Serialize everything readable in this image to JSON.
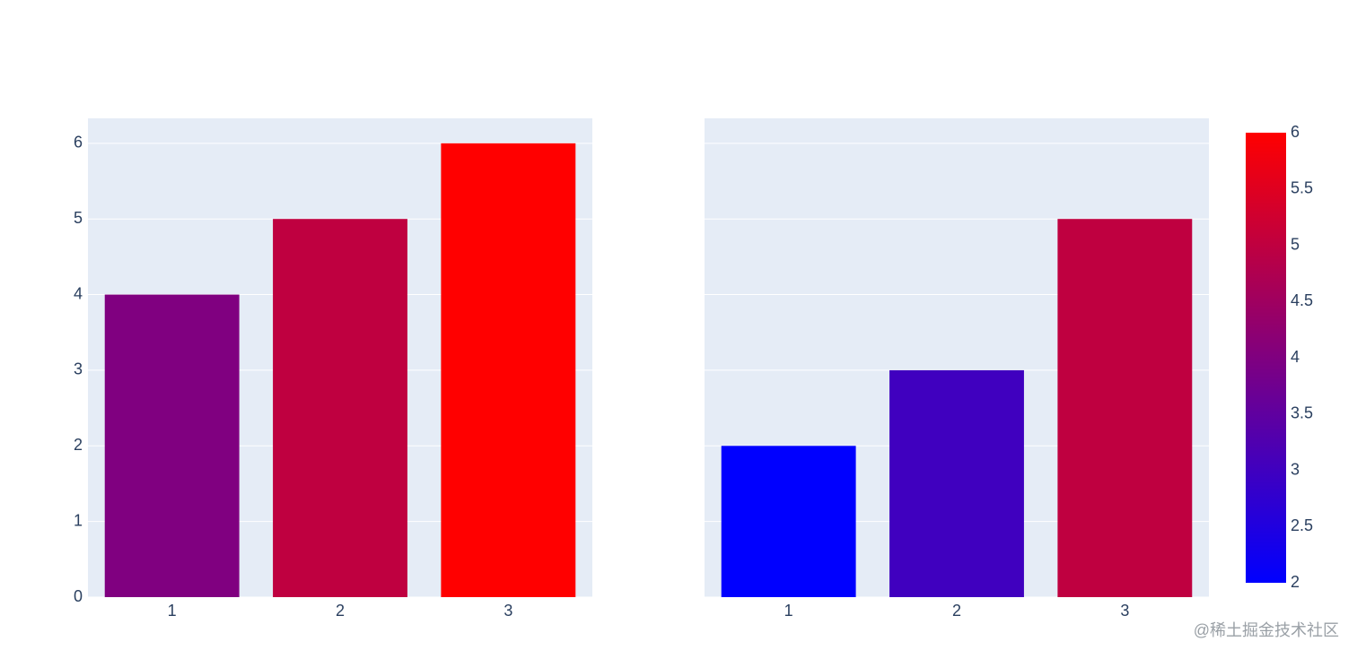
{
  "chart_data": [
    {
      "type": "bar",
      "categories": [
        "1",
        "2",
        "3"
      ],
      "series": [
        {
          "values": [
            4,
            5,
            6
          ],
          "colors": [
            "#800080",
            "#bf0040",
            "#ff0000"
          ]
        }
      ],
      "ylim": [
        0,
        6.33
      ],
      "yticks": [
        0,
        1,
        2,
        3,
        4,
        5,
        6
      ],
      "show_ytick_labels": true,
      "grid": true
    },
    {
      "type": "bar",
      "categories": [
        "1",
        "2",
        "3"
      ],
      "series": [
        {
          "values": [
            2,
            3,
            5
          ],
          "colors": [
            "#0000ff",
            "#4000bf",
            "#bf0040"
          ]
        }
      ],
      "ylim": [
        0,
        6.33
      ],
      "yticks": [
        0,
        1,
        2,
        3,
        4,
        5,
        6
      ],
      "show_ytick_labels": false,
      "grid": true,
      "colorbar": {
        "colors": [
          "#0000ff",
          "#ff0000"
        ],
        "lim": [
          2,
          6
        ],
        "ticks": [
          2,
          2.5,
          3,
          3.5,
          4,
          4.5,
          5,
          5.5,
          6
        ]
      }
    }
  ],
  "watermark": "@稀土掘金技术社区"
}
